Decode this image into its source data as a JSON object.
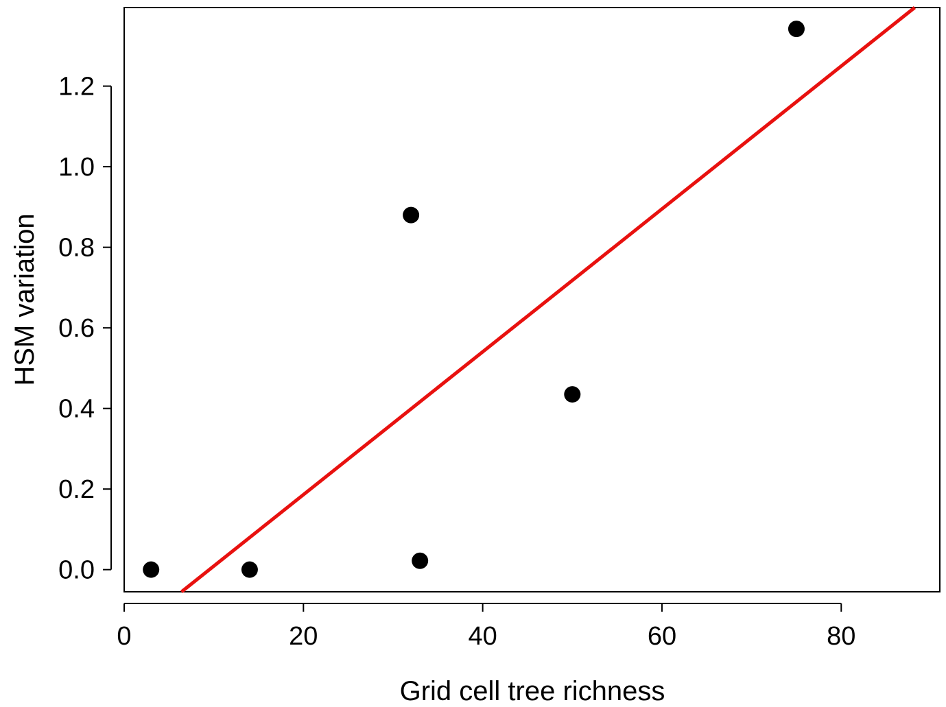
{
  "chart_data": {
    "type": "scatter",
    "title": "",
    "xlabel": "Grid cell tree richness",
    "ylabel": "HSM variation",
    "xlim": [
      0,
      91
    ],
    "ylim": [
      -0.055,
      1.395
    ],
    "xticks": [
      0,
      20,
      40,
      60,
      80
    ],
    "xtick_labels": [
      "0",
      "20",
      "40",
      "60",
      "80"
    ],
    "yticks": [
      0.0,
      0.2,
      0.4,
      0.6,
      0.8,
      1.0,
      1.2
    ],
    "ytick_labels": [
      "0.0",
      "0.2",
      "0.4",
      "0.6",
      "0.8",
      "1.0",
      "1.2"
    ],
    "grid": false,
    "legend": "none",
    "points": [
      {
        "x": 3,
        "y": 0.0
      },
      {
        "x": 14,
        "y": 0.0
      },
      {
        "x": 32,
        "y": 0.88
      },
      {
        "x": 33,
        "y": 0.022
      },
      {
        "x": 50,
        "y": 0.435
      },
      {
        "x": 75,
        "y": 1.342
      }
    ],
    "fit_line": {
      "x": [
        6.4,
        88.2
      ],
      "y": [
        -0.055,
        1.395
      ]
    },
    "colors": {
      "points": "#000000",
      "fit_line": "#e8110f",
      "axes": "#000000"
    }
  }
}
